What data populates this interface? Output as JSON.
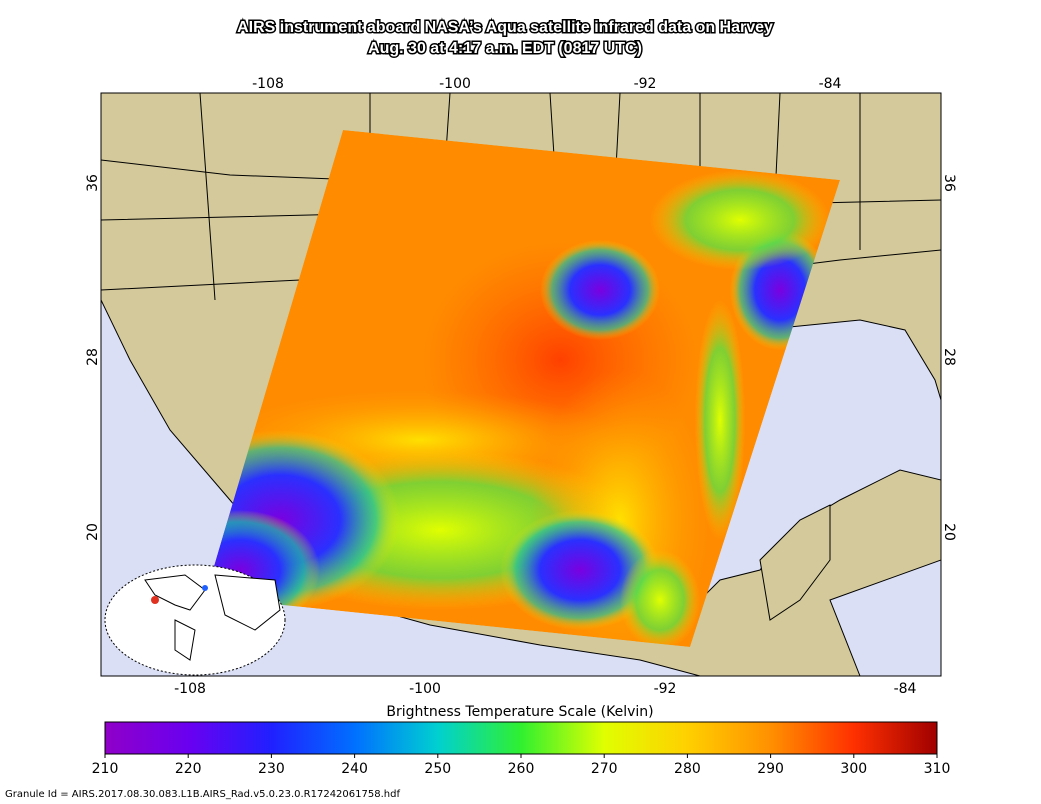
{
  "title": {
    "line1": "AIRS instrument aboard NASA’s Aqua satellite infrared data on Harvey",
    "line2": "Aug. 30 at 4:17 a.m. EDT (0817 UTC)"
  },
  "map": {
    "lon_ticks": [
      -108,
      -100,
      -92,
      -84
    ],
    "lat_ticks": [
      36,
      28,
      20
    ]
  },
  "colorbar": {
    "title": "Brightness Temperature Scale (Kelvin)",
    "range": [
      210,
      310
    ],
    "ticks": [
      210,
      220,
      230,
      240,
      250,
      260,
      270,
      280,
      290,
      300,
      310
    ]
  },
  "footer": "Granule Id = AIRS.2017.08.30.083.L1B.AIRS_Rad.v5.0.23.0.R17242061758.hdf"
}
